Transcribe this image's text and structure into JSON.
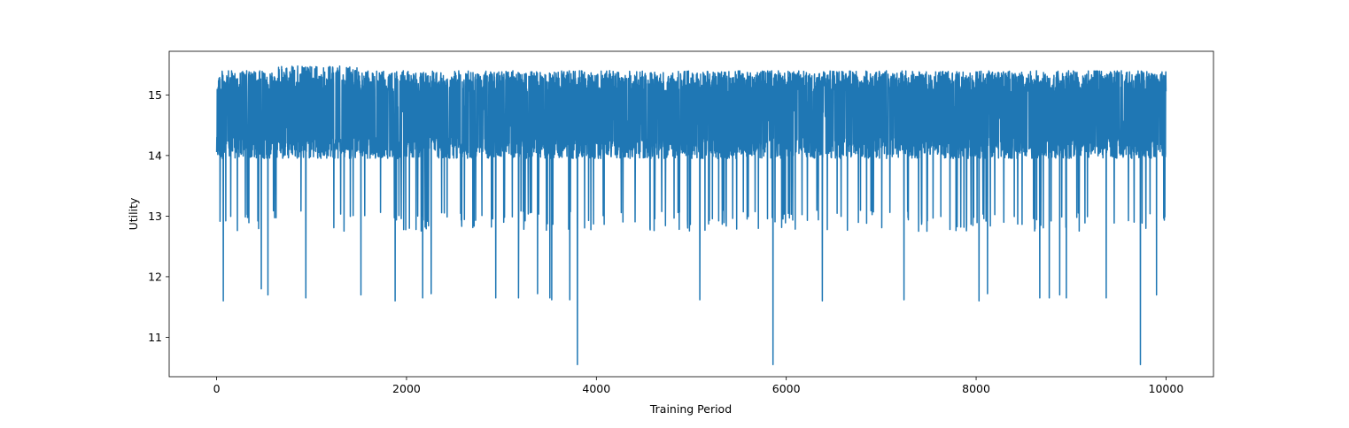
{
  "chart_data": {
    "type": "line",
    "title": "",
    "xlabel": "Training Period",
    "ylabel": "Utility",
    "xlim": [
      -500,
      10500
    ],
    "ylim": [
      10.35,
      15.72
    ],
    "xticks": [
      0,
      2000,
      4000,
      6000,
      8000,
      10000
    ],
    "xtick_labels": [
      "0",
      "2000",
      "4000",
      "6000",
      "8000",
      "10000"
    ],
    "yticks": [
      11,
      12,
      13,
      14,
      15
    ],
    "ytick_labels": [
      "11",
      "12",
      "13",
      "14",
      "15"
    ],
    "grid": false,
    "legend": "none",
    "line_color": "#1f77b4",
    "series": [
      {
        "x_range": [
          0,
          10000
        ],
        "upper_envelope": 15.4,
        "lower_dense": 13.9,
        "lower_band": 12.8,
        "dips": [
          {
            "x": 70,
            "y": 11.6
          },
          {
            "x": 470,
            "y": 11.8
          },
          {
            "x": 540,
            "y": 11.7
          },
          {
            "x": 940,
            "y": 11.65
          },
          {
            "x": 1520,
            "y": 11.7
          },
          {
            "x": 1880,
            "y": 11.6
          },
          {
            "x": 2170,
            "y": 11.65
          },
          {
            "x": 2260,
            "y": 11.72
          },
          {
            "x": 2940,
            "y": 11.65
          },
          {
            "x": 3180,
            "y": 11.65
          },
          {
            "x": 3380,
            "y": 11.72
          },
          {
            "x": 3510,
            "y": 11.65
          },
          {
            "x": 3530,
            "y": 11.62
          },
          {
            "x": 3720,
            "y": 11.62
          },
          {
            "x": 3800,
            "y": 10.55
          },
          {
            "x": 5090,
            "y": 11.62
          },
          {
            "x": 5860,
            "y": 10.55
          },
          {
            "x": 6380,
            "y": 11.6
          },
          {
            "x": 7240,
            "y": 11.62
          },
          {
            "x": 8030,
            "y": 11.6
          },
          {
            "x": 8120,
            "y": 11.72
          },
          {
            "x": 8670,
            "y": 11.65
          },
          {
            "x": 8770,
            "y": 11.65
          },
          {
            "x": 8880,
            "y": 11.7
          },
          {
            "x": 8950,
            "y": 11.65
          },
          {
            "x": 9370,
            "y": 11.65
          },
          {
            "x": 9730,
            "y": 10.55
          },
          {
            "x": 9900,
            "y": 11.7
          }
        ]
      }
    ]
  }
}
